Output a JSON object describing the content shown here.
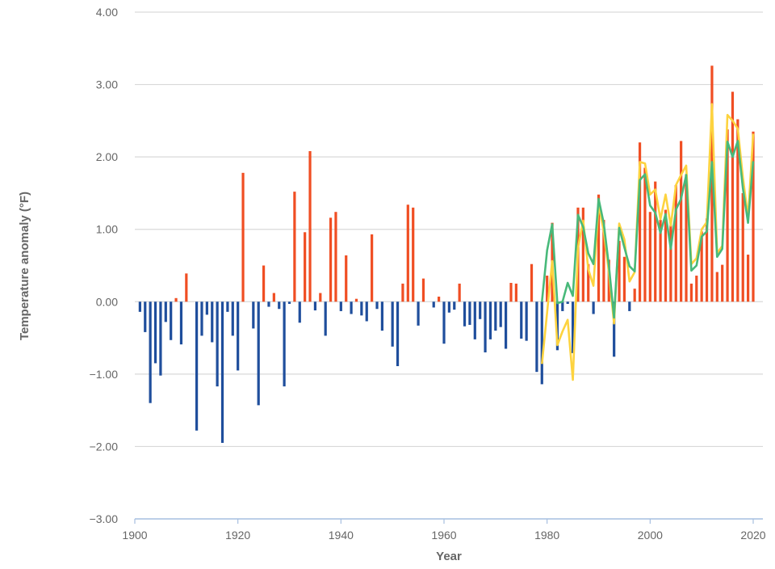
{
  "chart_data": {
    "type": "bar",
    "title": "",
    "xlabel": "Year",
    "ylabel": "Temperature anomaly (°F)",
    "xlim": [
      1900,
      2022
    ],
    "ylim": [
      -3,
      4
    ],
    "grid": true,
    "x_ticks": [
      "1900",
      "1920",
      "1940",
      "1960",
      "1980",
      "2000",
      "2020"
    ],
    "y_ticks": [
      "4.00",
      "3.00",
      "2.00",
      "1.00",
      "0.00",
      "−1.00",
      "−2.00",
      "−3.00"
    ],
    "colors": {
      "positive": "#f04e23",
      "negative": "#1f4e9c",
      "line_green": "#48b97a",
      "line_yellow": "#fdd33f",
      "grid": "#d9d9d9",
      "axis": "#a6bfe0"
    },
    "bars": {
      "start_year": 1901,
      "values": [
        -0.14,
        -0.42,
        -1.4,
        -0.85,
        -1.02,
        -0.28,
        -0.53,
        0.05,
        -0.59,
        0.39,
        0.0,
        -1.78,
        -0.47,
        -0.18,
        -0.56,
        -1.17,
        -1.95,
        -0.14,
        -0.47,
        -0.95,
        1.78,
        0.0,
        -0.37,
        -1.43,
        0.5,
        -0.07,
        0.12,
        -0.1,
        -1.17,
        -0.03,
        1.52,
        -0.29,
        0.96,
        2.08,
        -0.12,
        0.12,
        -0.47,
        1.16,
        1.24,
        -0.13,
        0.64,
        -0.17,
        0.04,
        -0.19,
        -0.27,
        0.93,
        -0.1,
        -0.4,
        0.0,
        -0.62,
        -0.89,
        0.25,
        1.34,
        1.3,
        -0.33,
        0.32,
        0.0,
        -0.08,
        0.07,
        -0.58,
        -0.15,
        -0.11,
        0.25,
        -0.34,
        -0.32,
        -0.52,
        -0.24,
        -0.7,
        -0.52,
        -0.4,
        -0.35,
        -0.65,
        0.26,
        0.25,
        -0.51,
        -0.54,
        0.52,
        -0.97,
        -1.14,
        0.36,
        1.09,
        -0.67,
        -0.13,
        -0.03,
        -0.71,
        1.3,
        1.3,
        0.52,
        -0.17,
        1.48,
        1.13,
        0.58,
        -0.76,
        0.84,
        0.62,
        -0.13,
        0.18,
        2.2,
        1.85,
        1.24,
        1.66,
        1.13,
        1.27,
        1.06,
        1.61,
        2.22,
        1.76,
        0.25,
        0.36,
        0.97,
        1.15,
        3.26,
        0.41,
        0.51,
        2.38,
        2.9,
        2.52,
        1.5,
        0.65,
        2.35
      ]
    },
    "series": [
      {
        "color": "#48b97a",
        "start_year": 1979,
        "values": [
          0.0,
          0.71,
          1.07,
          -0.02,
          0.0,
          0.26,
          0.08,
          1.2,
          1.03,
          0.67,
          0.52,
          1.42,
          1.08,
          0.49,
          -0.22,
          1.02,
          0.75,
          0.49,
          0.42,
          1.68,
          1.76,
          1.33,
          1.23,
          0.95,
          1.21,
          0.73,
          1.27,
          1.42,
          1.75,
          0.43,
          0.5,
          0.9,
          0.97,
          1.93,
          0.62,
          0.73,
          2.21,
          2.0,
          2.22,
          1.57,
          1.09,
          1.94
        ]
      },
      {
        "color": "#fdd33f",
        "start_year": 1979,
        "values": [
          -0.86,
          -0.15,
          0.56,
          -0.6,
          -0.41,
          -0.25,
          -1.08,
          0.75,
          1.12,
          0.45,
          0.22,
          1.35,
          0.97,
          0.4,
          -0.3,
          1.08,
          0.86,
          0.28,
          0.41,
          1.93,
          1.91,
          1.48,
          1.55,
          1.14,
          1.48,
          1.05,
          1.61,
          1.75,
          1.88,
          0.52,
          0.6,
          1.0,
          1.1,
          2.73,
          0.67,
          0.77,
          2.58,
          2.5,
          2.39,
          1.72,
          1.16,
          2.32
        ]
      }
    ]
  }
}
